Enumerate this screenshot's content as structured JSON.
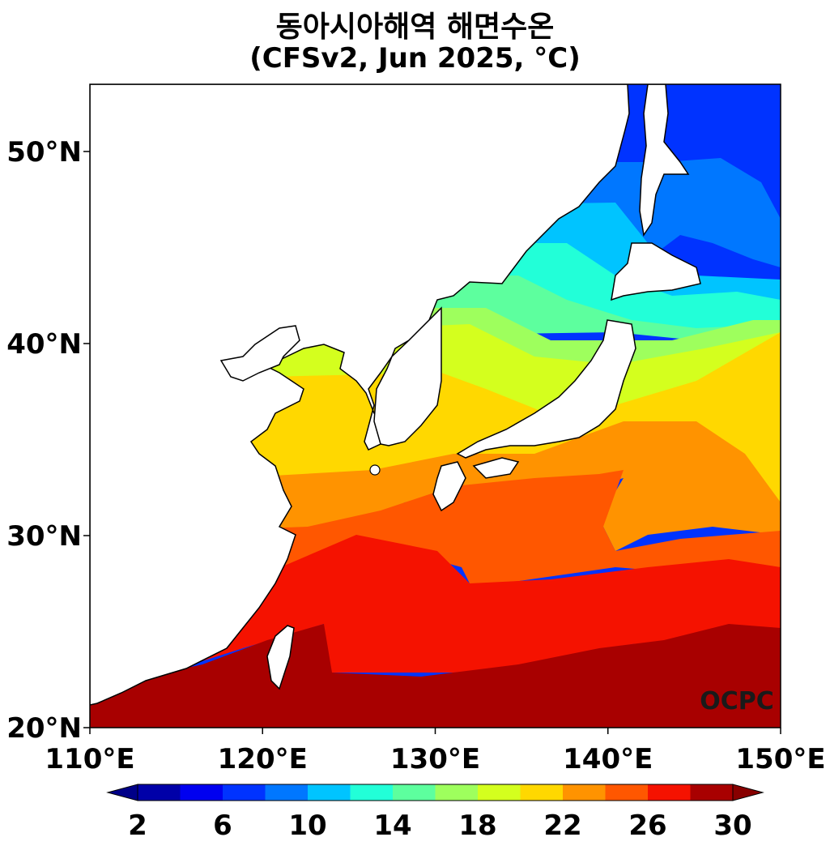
{
  "title": "동아시아해역 해면수온",
  "subtitle": "(CFSv2, Jun 2025, °C)",
  "watermark": "OCPC",
  "map": {
    "lon_range": [
      110,
      150
    ],
    "lat_range": [
      20,
      53.5
    ],
    "lat_ticks": [
      {
        "value": 50,
        "label": "50°N"
      },
      {
        "value": 40,
        "label": "40°N"
      },
      {
        "value": 30,
        "label": "30°N"
      },
      {
        "value": 20,
        "label": "20°N"
      }
    ],
    "lon_ticks": [
      {
        "value": 110,
        "label": "110°E"
      },
      {
        "value": 120,
        "label": "120°E"
      },
      {
        "value": 130,
        "label": "130°E"
      },
      {
        "value": 140,
        "label": "140°E"
      },
      {
        "value": 150,
        "label": "150°E"
      }
    ],
    "land_color": "#ffffff",
    "coast_color": "#000000"
  },
  "colorbar": {
    "levels": [
      2,
      4,
      6,
      8,
      10,
      12,
      14,
      16,
      18,
      20,
      22,
      24,
      26,
      28,
      30
    ],
    "labels": [
      "2",
      "6",
      "10",
      "14",
      "18",
      "22",
      "26",
      "30"
    ],
    "colors": [
      "#0000a8",
      "#0000f0",
      "#0033ff",
      "#0077ff",
      "#00c4ff",
      "#22ffd8",
      "#5dff9e",
      "#9eff5d",
      "#d4ff1e",
      "#ffd800",
      "#ff9300",
      "#ff5700",
      "#f51200",
      "#a80000"
    ],
    "under_color": "#000088",
    "over_color": "#880000"
  }
}
